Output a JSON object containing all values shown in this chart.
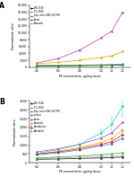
{
  "pk_x": [
    0.4,
    0.6,
    0.8,
    1.0,
    1.1,
    1.2
  ],
  "background_color": "#ffffff",
  "panel_A": {
    "xlabel": "PK concentration, µg/mg tissue",
    "ylabel": "Normalized ratio",
    "ylim": [
      0,
      18000
    ],
    "yticks": [
      0,
      2000,
      4000,
      6000,
      8000,
      10000,
      12000,
      14000,
      16000,
      18000
    ],
    "xticks": [
      0.4,
      0.6,
      0.8,
      1.0,
      1.1,
      1.2
    ],
    "xlim": [
      0.33,
      1.27
    ],
    "series": [
      {
        "label": "BK 1748",
        "color": "#111111",
        "marker": "s",
        "linestyle": "-",
        "values": [
          350,
          380,
          420,
          480,
          530,
          600
        ]
      },
      {
        "label": "PG 2380",
        "color": "#888888",
        "marker": "s",
        "linestyle": "--",
        "values": [
          400,
          450,
          500,
          560,
          620,
          700
        ]
      },
      {
        "label": "Exp. ovine BSE 347 MS",
        "color": "#44aa44",
        "marker": "s",
        "linestyle": "-",
        "values": [
          500,
          550,
          600,
          700,
          750,
          850
        ]
      },
      {
        "label": "Snem",
        "color": "#bb44bb",
        "marker": "D",
        "linestyle": "-",
        "values": [
          1200,
          2500,
          5000,
          8500,
          10500,
          16000
        ]
      },
      {
        "label": "Shanada",
        "color": "#ddaa00",
        "marker": "D",
        "linestyle": "-",
        "values": [
          1000,
          1400,
          2000,
          2800,
          3300,
          4500
        ]
      }
    ]
  },
  "panel_B": {
    "xlabel": "PK concentration, µg/mg tissue",
    "ylabel": "Normalized ratio",
    "ylim": [
      0,
      3500
    ],
    "yticks": [
      0,
      500,
      1000,
      1500,
      2000,
      2500,
      3000,
      3500
    ],
    "xticks": [
      0.4,
      0.6,
      0.8,
      1.0,
      1.1,
      1.2
    ],
    "xlim": [
      0.33,
      1.27
    ],
    "series": [
      {
        "label": "BK 1748",
        "color": "#111111",
        "marker": "s",
        "linestyle": "-",
        "values": [
          200,
          220,
          250,
          280,
          300,
          330
        ]
      },
      {
        "label": "PG 2380",
        "color": "#888888",
        "marker": "s",
        "linestyle": "--",
        "values": [
          230,
          270,
          310,
          360,
          390,
          430
        ]
      },
      {
        "label": "Exp. ovine BSE 347 MS",
        "color": "#44aa44",
        "marker": "s",
        "linestyle": "-",
        "values": [
          280,
          330,
          390,
          460,
          510,
          570
        ]
      },
      {
        "label": "Handbalins",
        "color": "#cc2222",
        "marker": "D",
        "linestyle": "-",
        "values": [
          500,
          620,
          800,
          1050,
          1200,
          1600
        ],
        "yerr": [
          30,
          40,
          60,
          80,
          200,
          300
        ]
      },
      {
        "label": "Limber",
        "color": "#4477cc",
        "marker": "D",
        "linestyle": "-",
        "values": [
          450,
          570,
          730,
          970,
          1100,
          1400
        ]
      },
      {
        "label": "Rasaland",
        "color": "#22cccc",
        "marker": "D",
        "linestyle": "-",
        "values": [
          550,
          750,
          1050,
          1700,
          2200,
          3200
        ],
        "yerr": [
          40,
          60,
          80,
          200,
          400,
          600
        ]
      },
      {
        "label": "Snem",
        "color": "#bb44bb",
        "marker": "D",
        "linestyle": "-",
        "values": [
          620,
          800,
          1050,
          1400,
          1700,
          2300
        ]
      },
      {
        "label": "Shanada",
        "color": "#ddaa00",
        "marker": "D",
        "linestyle": "-",
        "values": [
          500,
          660,
          880,
          1150,
          1380,
          1850
        ]
      }
    ]
  }
}
